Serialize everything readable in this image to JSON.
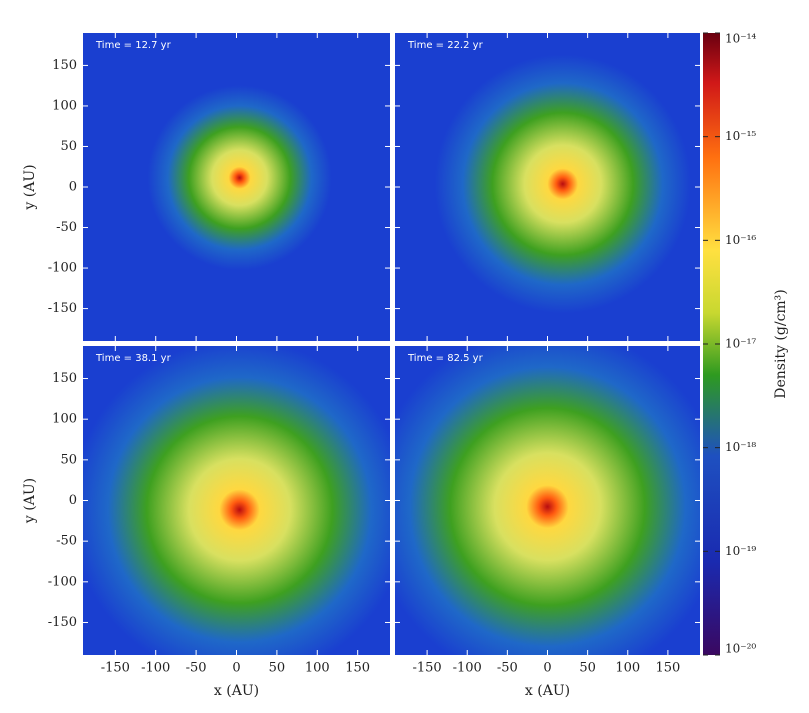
{
  "chart_data": {
    "type": "heatmap",
    "panels": [
      {
        "title": "Time = 12.7 yr"
      },
      {
        "title": "Time = 22.2 yr"
      },
      {
        "title": "Time = 38.1 yr"
      },
      {
        "title": "Time = 82.5 yr"
      }
    ],
    "xlabel": "x (AU)",
    "ylabel": "y (AU)",
    "xlim": [
      -190,
      190
    ],
    "ylim": [
      -190,
      190
    ],
    "xticks": [
      -150,
      -100,
      -50,
      0,
      50,
      100,
      150
    ],
    "yticks": [
      -150,
      -100,
      -50,
      0,
      50,
      100,
      150
    ],
    "colorbar": {
      "label": "Density (g/cm³)",
      "lim": [
        1e-20,
        1e-14
      ],
      "log": true,
      "ticks": [
        {
          "value": 1e-14,
          "label": "10⁻¹⁴"
        },
        {
          "value": 1e-15,
          "label": "10⁻¹⁵"
        },
        {
          "value": 1e-16,
          "label": "10⁻¹⁶"
        },
        {
          "value": 1e-17,
          "label": "10⁻¹⁷"
        },
        {
          "value": 1e-18,
          "label": "10⁻¹⁸"
        },
        {
          "value": 1e-19,
          "label": "10⁻¹⁹"
        },
        {
          "value": 1e-20,
          "label": "10⁻²⁰"
        }
      ]
    }
  }
}
